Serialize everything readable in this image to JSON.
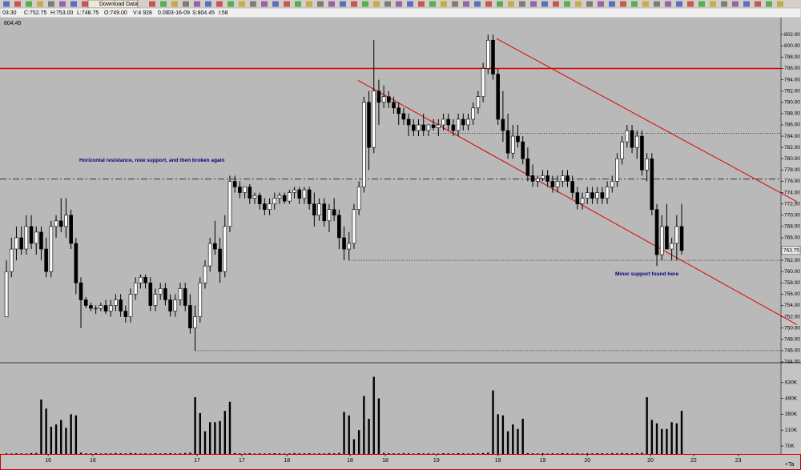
{
  "toolbar": {
    "button": "Download Data",
    "status": [
      "03:30",
      "C:752.75",
      "H:753.00",
      "L:748.75",
      "O:749.00",
      "V:4 928",
      "0.00",
      "03-16-09",
      "S:804.45",
      "I:58"
    ]
  },
  "chart_data": {
    "type": "candlestick",
    "scale_high": "804.45",
    "last_price": 763.75,
    "corner_label": "+Ta",
    "annotations": [
      "Horizontal resistance, now support, and then broken again",
      "Minor support found here"
    ],
    "xlim": [
      -1.3,
      156
    ],
    "ylim": [
      744,
      804.3
    ],
    "vlim": [
      0,
      790
    ],
    "grid": false,
    "up_color": "#ffffff",
    "down_color": "#000000",
    "volume_color": "#000000",
    "xticks": [
      {
        "value": 8.4,
        "label": "16"
      },
      {
        "value": 17.4,
        "label": "16"
      },
      {
        "value": 38.4,
        "label": "17"
      },
      {
        "value": 47.4,
        "label": "17"
      },
      {
        "value": 56.5,
        "label": "18"
      },
      {
        "value": 69.2,
        "label": "18"
      },
      {
        "value": 76.3,
        "label": "18"
      },
      {
        "value": 86.6,
        "label": "19"
      },
      {
        "value": 99,
        "label": "19"
      },
      {
        "value": 108,
        "label": "19"
      },
      {
        "value": 117,
        "label": "20"
      },
      {
        "value": 129.7,
        "label": "20"
      },
      {
        "value": 138.4,
        "label": "22"
      },
      {
        "value": 147.4,
        "label": "23"
      }
    ],
    "yticks": [
      {
        "value": 744,
        "label": "744.00"
      },
      {
        "value": 746,
        "label": "746.00"
      },
      {
        "value": 748,
        "label": "748.00"
      },
      {
        "value": 750,
        "label": "750.00"
      },
      {
        "value": 752,
        "label": "752.00"
      },
      {
        "value": 754,
        "label": "754.00"
      },
      {
        "value": 756,
        "label": "756.00"
      },
      {
        "value": 758,
        "label": "758.00"
      },
      {
        "value": 760,
        "label": "760.00"
      },
      {
        "value": 762,
        "label": "762.00"
      },
      {
        "value": 764,
        "label": "764.00"
      },
      {
        "value": 766,
        "label": "766.00"
      },
      {
        "value": 768,
        "label": "768.00"
      },
      {
        "value": 770,
        "label": "770.00"
      },
      {
        "value": 772,
        "label": "772.00"
      },
      {
        "value": 774,
        "label": "774.00"
      },
      {
        "value": 776,
        "label": "776.00"
      },
      {
        "value": 778,
        "label": "778.00"
      },
      {
        "value": 780,
        "label": "780.00"
      },
      {
        "value": 782,
        "label": "782.00"
      },
      {
        "value": 784,
        "label": "784.00"
      },
      {
        "value": 786,
        "label": "786.00"
      },
      {
        "value": 788,
        "label": "788.00"
      },
      {
        "value": 790,
        "label": "790.00"
      },
      {
        "value": 792,
        "label": "792.00"
      },
      {
        "value": 794,
        "label": "794.00"
      },
      {
        "value": 796,
        "label": "796.00"
      },
      {
        "value": 798,
        "label": "798.00"
      },
      {
        "value": 800,
        "label": "800.00"
      },
      {
        "value": 802,
        "label": "802.00"
      }
    ],
    "vticks": [
      {
        "value": 70,
        "label": "70K"
      },
      {
        "value": 210,
        "label": "210K"
      },
      {
        "value": 350,
        "label": "350K"
      },
      {
        "value": 490,
        "label": "490K"
      },
      {
        "value": 630,
        "label": "630K"
      }
    ],
    "hlines": [
      {
        "value": 796,
        "from": -1.3,
        "color": "#e00000",
        "style": "solid"
      },
      {
        "value": 776.4,
        "from": -1.3,
        "color": "#333333",
        "style": "dashdot"
      },
      {
        "value": 784.5,
        "from": 86,
        "color": "#333333",
        "style": "dotted"
      },
      {
        "value": 762,
        "from": 69,
        "color": "#333333",
        "style": "dotted"
      },
      {
        "value": 746,
        "from": 38,
        "color": "#333333",
        "style": "dotted"
      }
    ],
    "trendlines": [
      {
        "x": [
          98.7,
          159.2
        ],
        "y": [
          801.3,
          772.4
        ],
        "color": "#e00000"
      },
      {
        "x": [
          70.8,
          159.2
        ],
        "y": [
          793.9,
          750.6
        ],
        "color": "#e00000"
      }
    ],
    "candles": [
      [
        752,
        762,
        752,
        760
      ],
      [
        760,
        766,
        759,
        764
      ],
      [
        764,
        768,
        762,
        766
      ],
      [
        766,
        768,
        763,
        764
      ],
      [
        764,
        770,
        763,
        768
      ],
      [
        768,
        770,
        764,
        765
      ],
      [
        765,
        768,
        763,
        767
      ],
      [
        767,
        768,
        762,
        764
      ],
      [
        764,
        766,
        759,
        760
      ],
      [
        760,
        769,
        759,
        768
      ],
      [
        768,
        770,
        766,
        769
      ],
      [
        769,
        773,
        767,
        768
      ],
      [
        768,
        773,
        766,
        770
      ],
      [
        770,
        771,
        764,
        765
      ],
      [
        765,
        766,
        756,
        758
      ],
      [
        758,
        759,
        750,
        755
      ],
      [
        755,
        755.5,
        753.5,
        754
      ],
      [
        754,
        754.5,
        753,
        753.5
      ],
      [
        753.5,
        754,
        752.5,
        753.5
      ],
      [
        753.5,
        754.5,
        753,
        754
      ],
      [
        754,
        755,
        752.5,
        753
      ],
      [
        753,
        755,
        752,
        754
      ],
      [
        754,
        756,
        753,
        755
      ],
      [
        755,
        756,
        752,
        753
      ],
      [
        753,
        754,
        751,
        752
      ],
      [
        752,
        757,
        751,
        756
      ],
      [
        756,
        759,
        755,
        758
      ],
      [
        758,
        759.5,
        757,
        759
      ],
      [
        759,
        759.5,
        757,
        758
      ],
      [
        758,
        759,
        753,
        754
      ],
      [
        754,
        757,
        753,
        756
      ],
      [
        756,
        758,
        755,
        757
      ],
      [
        757,
        758,
        754,
        755
      ],
      [
        755,
        756,
        752,
        753
      ],
      [
        753,
        756,
        752,
        755
      ],
      [
        755,
        758,
        754,
        757
      ],
      [
        757,
        758,
        753,
        754
      ],
      [
        754,
        756,
        749,
        750
      ],
      [
        750,
        754,
        746,
        752
      ],
      [
        752,
        759,
        751,
        758
      ],
      [
        758,
        762,
        757,
        761
      ],
      [
        761,
        766,
        760,
        765
      ],
      [
        765,
        769,
        763,
        764
      ],
      [
        764,
        766,
        758,
        760
      ],
      [
        760,
        770,
        759,
        768
      ],
      [
        768,
        777,
        767,
        776
      ],
      [
        776,
        777,
        774,
        775
      ],
      [
        775,
        776,
        773,
        774
      ],
      [
        774,
        775,
        773,
        775
      ],
      [
        775,
        775.5,
        772,
        773
      ],
      [
        773,
        774,
        772,
        773.5
      ],
      [
        773.5,
        774,
        771,
        772
      ],
      [
        772,
        773,
        770,
        771
      ],
      [
        771,
        773,
        770,
        772
      ],
      [
        772,
        774,
        771,
        773
      ],
      [
        773,
        774,
        772,
        773.5
      ],
      [
        773.5,
        774,
        772,
        772.5
      ],
      [
        772.5,
        774.5,
        772,
        774
      ],
      [
        774,
        775,
        773,
        774.5
      ],
      [
        774.5,
        775,
        772,
        773
      ],
      [
        773,
        775,
        772,
        774.5
      ],
      [
        774.5,
        775,
        771,
        772
      ],
      [
        772,
        774,
        768,
        770
      ],
      [
        770,
        773,
        769,
        772
      ],
      [
        772,
        773,
        768,
        769
      ],
      [
        769,
        772,
        767,
        771
      ],
      [
        771,
        773,
        769,
        770
      ],
      [
        770,
        771,
        764,
        766
      ],
      [
        766,
        768,
        762,
        764
      ],
      [
        764,
        767,
        762,
        765
      ],
      [
        765,
        772,
        764,
        771
      ],
      [
        771,
        776,
        770,
        775
      ],
      [
        775,
        791,
        774,
        790
      ],
      [
        790,
        792,
        778,
        782
      ],
      [
        782,
        801,
        781,
        792
      ],
      [
        792,
        794,
        786,
        790
      ],
      [
        790,
        793,
        789,
        791
      ],
      [
        791,
        792,
        789,
        790
      ],
      [
        790,
        791,
        788,
        789
      ],
      [
        789,
        790,
        786,
        788
      ],
      [
        788,
        789,
        786,
        787
      ],
      [
        787,
        788,
        784,
        786
      ],
      [
        786,
        787,
        784,
        785
      ],
      [
        785,
        787,
        784,
        786
      ],
      [
        786,
        788,
        784,
        785
      ],
      [
        785,
        786,
        784,
        786
      ],
      [
        786,
        787,
        785,
        785.5
      ],
      [
        785.5,
        787,
        784,
        786
      ],
      [
        786,
        788,
        785,
        787
      ],
      [
        787,
        788,
        785,
        786
      ],
      [
        786,
        787,
        784,
        785
      ],
      [
        785,
        788,
        784,
        787
      ],
      [
        787,
        788,
        785,
        786
      ],
      [
        786,
        788,
        785,
        787
      ],
      [
        787,
        790,
        786,
        789
      ],
      [
        789,
        792,
        788,
        791
      ],
      [
        791,
        797,
        790,
        796
      ],
      [
        796,
        802,
        795,
        801
      ],
      [
        801,
        802,
        794,
        795
      ],
      [
        795,
        796,
        786,
        787
      ],
      [
        787,
        792,
        783,
        785
      ],
      [
        785,
        788,
        780,
        781
      ],
      [
        781,
        786,
        780,
        784
      ],
      [
        784,
        786,
        782,
        783
      ],
      [
        783,
        784,
        779,
        780
      ],
      [
        780,
        782,
        776,
        777
      ],
      [
        777,
        779,
        775,
        776
      ],
      [
        776,
        777,
        775,
        776.5
      ],
      [
        776.5,
        778,
        776,
        777
      ],
      [
        777,
        778,
        775,
        776
      ],
      [
        776,
        777,
        774,
        775
      ],
      [
        775,
        777,
        774,
        776
      ],
      [
        776,
        778,
        775,
        777
      ],
      [
        777,
        778,
        775,
        776
      ],
      [
        776,
        777,
        773,
        774
      ],
      [
        774,
        775,
        771,
        772
      ],
      [
        772,
        774,
        771,
        773
      ],
      [
        773,
        775,
        772,
        774
      ],
      [
        774,
        775,
        772,
        773
      ],
      [
        773,
        775,
        772,
        774
      ],
      [
        774,
        775,
        772,
        773
      ],
      [
        773,
        776,
        772,
        775
      ],
      [
        775,
        777,
        774,
        776
      ],
      [
        776,
        781,
        775,
        780
      ],
      [
        780,
        784,
        779,
        783
      ],
      [
        783,
        786,
        782,
        785
      ],
      [
        785,
        786,
        781,
        782
      ],
      [
        782,
        785,
        780,
        784
      ],
      [
        784,
        785,
        777,
        778
      ],
      [
        778,
        781,
        776,
        780
      ],
      [
        780,
        781,
        770,
        771
      ],
      [
        771,
        772,
        761,
        763
      ],
      [
        763,
        770,
        762,
        768
      ],
      [
        768,
        772,
        764,
        764
      ],
      [
        764,
        766,
        762,
        765
      ],
      [
        765,
        770,
        762,
        768
      ],
      [
        768,
        772,
        763,
        763.75
      ]
    ],
    "volumes": [
      5,
      4,
      6,
      5,
      4,
      8,
      9,
      480,
      400,
      240,
      260,
      300,
      230,
      350,
      340,
      12,
      6,
      5,
      7,
      4,
      6,
      5,
      8,
      6,
      5,
      9,
      7,
      5,
      6,
      4,
      7,
      5,
      6,
      8,
      5,
      6,
      9,
      12,
      500,
      360,
      200,
      280,
      280,
      290,
      380,
      460,
      8,
      6,
      5,
      7,
      4,
      6,
      5,
      5,
      7,
      6,
      4,
      5,
      8,
      6,
      5,
      7,
      4,
      6,
      5,
      8,
      6,
      10,
      370,
      340,
      130,
      210,
      510,
      310,
      680,
      490,
      9,
      7,
      6,
      5,
      8,
      6,
      4,
      7,
      5,
      6,
      5,
      4,
      7,
      6,
      5,
      8,
      6,
      5,
      7,
      6,
      9,
      12,
      560,
      350,
      340,
      200,
      260,
      220,
      310,
      8,
      6,
      5,
      7,
      4,
      6,
      5,
      8,
      6,
      5,
      7,
      4,
      6,
      5,
      7,
      6,
      5,
      8,
      6,
      9,
      7,
      6,
      8,
      10,
      500,
      300,
      270,
      220,
      220,
      280,
      270,
      380
    ]
  }
}
